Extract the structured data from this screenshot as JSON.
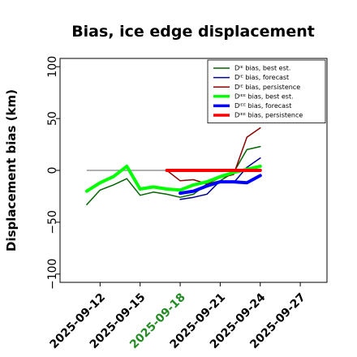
{
  "chart_data": {
    "type": "line",
    "title": "Bias, ice edge displacement",
    "xlabel": "",
    "ylabel": "Displacement bias (km)",
    "ylim": [
      -108,
      108
    ],
    "xlim": [
      "2025-09-09",
      "2025-09-29"
    ],
    "yticks": [
      "100",
      "50",
      "0",
      "−50",
      "−100"
    ],
    "ytick_values": [
      100,
      50,
      0,
      -50,
      -100
    ],
    "xticks": [
      "2025-09-12",
      "2025-09-15",
      "2025-09-18",
      "2025-09-21",
      "2025-09-24",
      "2025-09-27"
    ],
    "xtick_colors": [
      "#000000",
      "#000000",
      "#228b22",
      "#000000",
      "#000000",
      "#000000"
    ],
    "zero_line": {
      "from": "2025-09-11",
      "to": "2025-09-24",
      "y": 0,
      "color": "#808080"
    },
    "grid": false,
    "legend_position": "top-right",
    "series": [
      {
        "name": "Dᴵᴱ bias, best est.",
        "color": "#006400",
        "width": 1.5,
        "x": [
          "2025-09-11",
          "2025-09-12",
          "2025-09-13",
          "2025-09-14",
          "2025-09-15",
          "2025-09-16",
          "2025-09-17",
          "2025-09-18",
          "2025-09-19",
          "2025-09-20",
          "2025-09-21",
          "2025-09-22",
          "2025-09-23",
          "2025-09-24"
        ],
        "y": [
          -33,
          -19,
          -14,
          -8,
          -24,
          -21,
          -23,
          -26,
          -23,
          -13,
          -10,
          -2,
          20,
          23
        ]
      },
      {
        "name": "Dᴵᴱ bias, forecast",
        "color": "#00008b",
        "width": 1.5,
        "x": [
          "2025-09-18",
          "2025-09-19",
          "2025-09-20",
          "2025-09-21",
          "2025-09-22",
          "2025-09-23",
          "2025-09-24"
        ],
        "y": [
          -28,
          -26,
          -23,
          -10,
          -12,
          3,
          12
        ]
      },
      {
        "name": "Dᴵᴱ bias, persistence",
        "color": "#8b0000",
        "width": 1.5,
        "x": [
          "2025-09-17",
          "2025-09-18",
          "2025-09-19",
          "2025-09-20",
          "2025-09-21",
          "2025-09-22",
          "2025-09-23",
          "2025-09-24"
        ],
        "y": [
          0,
          -10,
          -9,
          -13,
          -7,
          -4,
          32,
          41
        ]
      },
      {
        "name": "Dᴵᴱᴱ bias, best est.",
        "color": "#00ff00",
        "width": 4,
        "x": [
          "2025-09-11",
          "2025-09-12",
          "2025-09-13",
          "2025-09-14",
          "2025-09-15",
          "2025-09-16",
          "2025-09-17",
          "2025-09-18",
          "2025-09-19",
          "2025-09-20",
          "2025-09-21",
          "2025-09-22",
          "2025-09-23",
          "2025-09-24"
        ],
        "y": [
          -20,
          -12,
          -6,
          4,
          -18,
          -16,
          -18,
          -19,
          -14,
          -11,
          -6,
          -2,
          1,
          4
        ]
      },
      {
        "name": "Dᴵᴱᴱ bias, forecast",
        "color": "#0000ff",
        "width": 4,
        "x": [
          "2025-09-18",
          "2025-09-19",
          "2025-09-20",
          "2025-09-21",
          "2025-09-22",
          "2025-09-23",
          "2025-09-24"
        ],
        "y": [
          -22,
          -20,
          -15,
          -11,
          -11,
          -12,
          -5
        ]
      },
      {
        "name": "Dᴵᴱᴱ bias, persistence",
        "color": "#ff0000",
        "width": 4,
        "x": [
          "2025-09-17",
          "2025-09-18",
          "2025-09-19",
          "2025-09-20",
          "2025-09-21",
          "2025-09-22",
          "2025-09-23",
          "2025-09-24"
        ],
        "y": [
          0,
          0,
          0,
          0,
          0,
          0,
          0,
          0
        ]
      }
    ]
  }
}
